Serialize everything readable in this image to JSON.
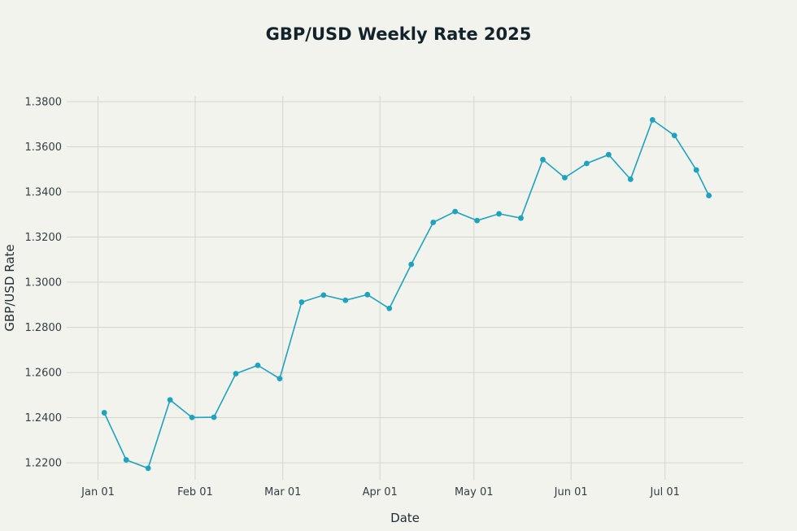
{
  "chart_data": {
    "type": "line",
    "title": "GBP/USD Weekly Rate 2025",
    "xlabel": "Date",
    "ylabel": "GBP/USD Rate",
    "x_ticks": [
      {
        "date": "2025-01-01",
        "label": "Jan 01"
      },
      {
        "date": "2025-02-01",
        "label": "Feb 01"
      },
      {
        "date": "2025-03-01",
        "label": "Mar 01"
      },
      {
        "date": "2025-04-01",
        "label": "Apr 01"
      },
      {
        "date": "2025-05-01",
        "label": "May 01"
      },
      {
        "date": "2025-06-01",
        "label": "Jun 01"
      },
      {
        "date": "2025-07-01",
        "label": "Jul 01"
      }
    ],
    "y_ticks": [
      {
        "value": 1.22,
        "label": "1.2200"
      },
      {
        "value": 1.24,
        "label": "1.2400"
      },
      {
        "value": 1.26,
        "label": "1.2600"
      },
      {
        "value": 1.28,
        "label": "1.2800"
      },
      {
        "value": 1.3,
        "label": "1.3000"
      },
      {
        "value": 1.32,
        "label": "1.3200"
      },
      {
        "value": 1.34,
        "label": "1.3400"
      },
      {
        "value": 1.36,
        "label": "1.3600"
      },
      {
        "value": 1.38,
        "label": "1.3800"
      }
    ],
    "xlim": [
      "2024-12-22",
      "2025-07-26"
    ],
    "ylim": [
      1.2125,
      1.3825
    ],
    "grid": true,
    "color": "#1ea3be",
    "series": [
      {
        "x": [
          "2025-01-03",
          "2025-01-10",
          "2025-01-17",
          "2025-01-24",
          "2025-01-31",
          "2025-02-07",
          "2025-02-14",
          "2025-02-21",
          "2025-02-28",
          "2025-03-07",
          "2025-03-14",
          "2025-03-21",
          "2025-03-28",
          "2025-04-04",
          "2025-04-11",
          "2025-04-18",
          "2025-04-25",
          "2025-05-02",
          "2025-05-09",
          "2025-05-16",
          "2025-05-23",
          "2025-05-30",
          "2025-06-06",
          "2025-06-13",
          "2025-06-20",
          "2025-06-27",
          "2025-07-04",
          "2025-07-11",
          "2025-07-15"
        ],
        "y": [
          1.2422,
          1.2213,
          1.2176,
          1.2479,
          1.2401,
          1.2402,
          1.2595,
          1.2632,
          1.2573,
          1.2912,
          1.2943,
          1.292,
          1.2945,
          1.2884,
          1.3079,
          1.3265,
          1.3313,
          1.3273,
          1.3303,
          1.3284,
          1.3543,
          1.3463,
          1.3526,
          1.3565,
          1.3456,
          1.3719,
          1.365,
          1.3497,
          1.3384
        ]
      }
    ]
  }
}
